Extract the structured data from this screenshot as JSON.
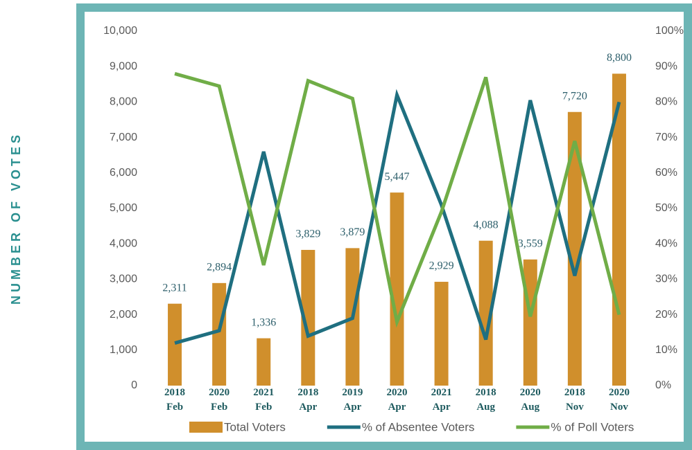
{
  "chart_data": {
    "type": "bar_line",
    "y_label": "NUMBER OF VOTES",
    "categories": [
      [
        "2018",
        "Feb"
      ],
      [
        "2020",
        "Feb"
      ],
      [
        "2021",
        "Feb"
      ],
      [
        "2018",
        "Apr"
      ],
      [
        "2019",
        "Apr"
      ],
      [
        "2020",
        "Apr"
      ],
      [
        "2021",
        "Apr"
      ],
      [
        "2018",
        "Aug"
      ],
      [
        "2020",
        "Aug"
      ],
      [
        "2018",
        "Nov"
      ],
      [
        "2020",
        "Nov"
      ]
    ],
    "series": [
      {
        "name": "Total Voters",
        "type": "bar",
        "color": "#d08f2c",
        "values": [
          2311,
          2894,
          1336,
          3829,
          3879,
          5447,
          2929,
          4088,
          3559,
          7720,
          8800
        ],
        "value_labels": [
          "2,311",
          "2,894",
          "1,336",
          "3,829",
          "3,879",
          "5,447",
          "2,929",
          "4,088",
          "3,559",
          "7,720",
          "8,800"
        ]
      },
      {
        "name": "% of Absentee Voters",
        "type": "line",
        "axis": "y2",
        "color": "#1f6f80",
        "values": [
          12,
          15.5,
          66,
          14,
          19,
          82,
          51,
          13,
          80.5,
          31,
          80
        ]
      },
      {
        "name": "% of Poll Voters",
        "type": "line",
        "axis": "y2",
        "color": "#70ad47",
        "values": [
          88,
          84.5,
          34,
          86,
          81,
          18,
          49,
          87,
          19.5,
          69,
          20
        ]
      }
    ],
    "ylim": [
      0,
      10000
    ],
    "yticks": [
      0,
      {
        "value": 1000,
        "label": "1,000"
      },
      {
        "value": 2000,
        "label": "2,000"
      },
      {
        "value": 3000,
        "label": "3,000"
      },
      {
        "value": 4000,
        "label": "4,000"
      },
      {
        "value": 5000,
        "label": "5,000"
      },
      {
        "value": 6000,
        "label": "6,000"
      },
      {
        "value": 7000,
        "label": "7,000"
      },
      {
        "value": 8000,
        "label": "8,000"
      },
      {
        "value": 9000,
        "label": "9,000"
      },
      {
        "value": 10000,
        "label": "10,000"
      }
    ],
    "y2lim": [
      0,
      100
    ],
    "y2ticks": [
      {
        "value": 0,
        "label": "0%"
      },
      {
        "value": 10,
        "label": "10%"
      },
      {
        "value": 20,
        "label": "20%"
      },
      {
        "value": 30,
        "label": "30%"
      },
      {
        "value": 40,
        "label": "40%"
      },
      {
        "value": 50,
        "label": "50%"
      },
      {
        "value": 60,
        "label": "60%"
      },
      {
        "value": 70,
        "label": "70%"
      },
      {
        "value": 80,
        "label": "80%"
      },
      {
        "value": 90,
        "label": "90%"
      },
      {
        "value": 100,
        "label": "100%"
      }
    ],
    "legend": "bottom"
  }
}
